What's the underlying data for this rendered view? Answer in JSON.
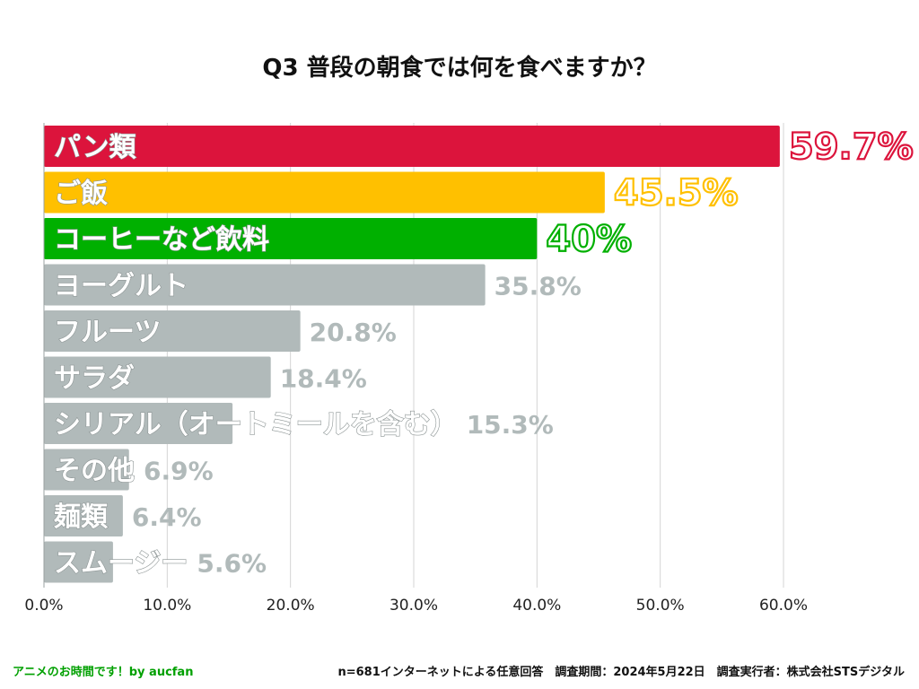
{
  "title": "Q3 普段の朝食では何を食べますか？",
  "chart_data": {
    "type": "bar",
    "orientation": "horizontal",
    "categories": [
      "パン類",
      "ご飯",
      "コーヒーなど飲料",
      "ヨーグルト",
      "フルーツ",
      "サラダ",
      "シリアル（オートミールを含む）",
      "その他",
      "麺類",
      "スムージー"
    ],
    "values": [
      59.7,
      45.5,
      40,
      35.8,
      20.8,
      18.4,
      15.3,
      6.9,
      6.4,
      5.6
    ],
    "value_labels": [
      "59.7%",
      "45.5%",
      "40%",
      "35.8%",
      "20.8%",
      "18.4%",
      "15.3%",
      "6.9%",
      "6.4%",
      "5.6%"
    ],
    "colors": [
      "#DC143C",
      "#FFC000",
      "#00B000",
      "#B1BABA",
      "#B1BABA",
      "#B1BABA",
      "#B1BABA",
      "#B1BABA",
      "#B1BABA",
      "#B1BABA"
    ],
    "xlim": [
      0,
      60
    ],
    "xticks": [
      "0.0%",
      "10.0%",
      "20.0%",
      "30.0%",
      "40.0%",
      "50.0%",
      "60.0%"
    ],
    "grid": true,
    "xlabel": "",
    "ylabel": ""
  },
  "footer": {
    "left": "アニメのお時間です！by aucfan",
    "left_color": "#00A000",
    "right": "n=681インターネットによる任意回答　調査期間：2024年5月22日　調査実行者：株式会社STSデジタル"
  }
}
